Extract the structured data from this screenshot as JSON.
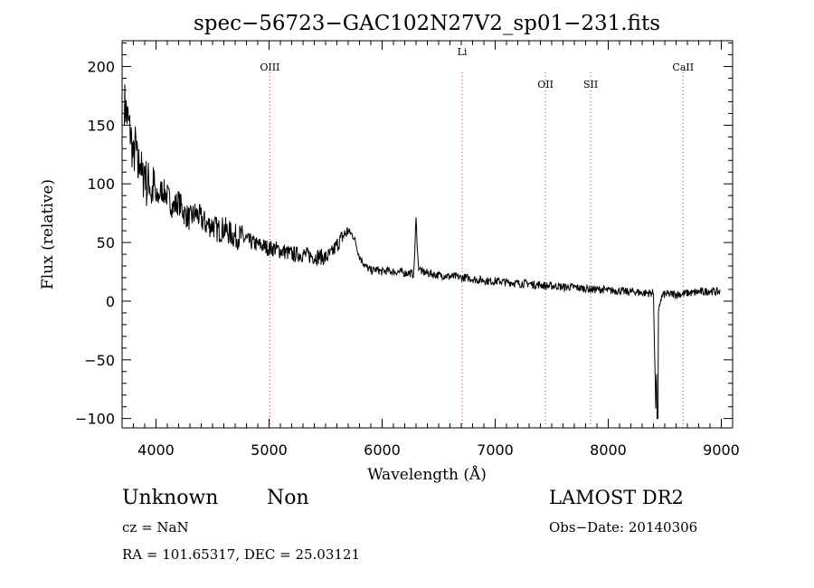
{
  "chart_data": {
    "type": "line",
    "title": "spec−56723−GAC102N27V2_sp01−231.fits",
    "xlabel": "Wavelength (Å)",
    "ylabel": "Flux (relative)",
    "xlim": [
      3700,
      9100
    ],
    "ylim": [
      -108,
      222
    ],
    "xticks": [
      4000,
      5000,
      6000,
      7000,
      8000,
      9000
    ],
    "yticks": [
      -100,
      -50,
      0,
      50,
      100,
      150,
      200
    ],
    "ytick_labels": [
      "−100",
      "−50",
      "0",
      "50",
      "100",
      "150",
      "200"
    ],
    "grid": false,
    "series": [
      {
        "x": [
          3720,
          3740,
          3760,
          3780,
          3800,
          3820,
          3840,
          3860,
          3880,
          3900,
          3920,
          3940,
          3960,
          3980,
          4000,
          4050,
          4100,
          4150,
          4200,
          4250,
          4300,
          4350,
          4400,
          4450,
          4500,
          4550,
          4600,
          4650,
          4700,
          4750,
          4800,
          4850,
          4900,
          4950,
          5000,
          5050,
          5100,
          5150,
          5200,
          5250,
          5300,
          5350,
          5400,
          5450,
          5500,
          5550,
          5600,
          5650,
          5700,
          5720,
          5750,
          5780,
          5800,
          5850,
          5900,
          5950,
          6000,
          6050,
          6100,
          6150,
          6200,
          6250,
          6280,
          6300,
          6320,
          6350,
          6400,
          6450,
          6500,
          6550,
          6600,
          6650,
          6700,
          6750,
          6800,
          6850,
          6900,
          6950,
          7000,
          7050,
          7100,
          7150,
          7200,
          7250,
          7300,
          7350,
          7400,
          7450,
          7500,
          7550,
          7600,
          7650,
          7700,
          7750,
          7800,
          7850,
          7900,
          7950,
          8000,
          8050,
          8100,
          8150,
          8200,
          8250,
          8300,
          8350,
          8400,
          8420,
          8440,
          8460,
          8480,
          8500,
          8550,
          8600,
          8650,
          8700,
          8750,
          8800,
          8850,
          8900,
          8950,
          8990
        ],
        "y": [
          170,
          160,
          150,
          140,
          120,
          135,
          110,
          125,
          100,
          115,
          95,
          105,
          90,
          100,
          85,
          95,
          90,
          80,
          85,
          75,
          70,
          75,
          70,
          65,
          65,
          60,
          62,
          58,
          55,
          55,
          52,
          50,
          48,
          47,
          45,
          45,
          43,
          42,
          40,
          40,
          40,
          39,
          38,
          38,
          37,
          40,
          48,
          55,
          60,
          58,
          55,
          45,
          38,
          30,
          26,
          27,
          25,
          26,
          25,
          25,
          24,
          24,
          23,
          70,
          30,
          25,
          24,
          23,
          22,
          22,
          21,
          21,
          20,
          20,
          19,
          18,
          18,
          17,
          17,
          17,
          16,
          16,
          15,
          15,
          15,
          14,
          14,
          13,
          13,
          13,
          12,
          12,
          12,
          11,
          11,
          10,
          10,
          10,
          9,
          9,
          9,
          8,
          8,
          8,
          7,
          7,
          7,
          -90,
          -15,
          0,
          5,
          6,
          6,
          6,
          6,
          7,
          7,
          8,
          8,
          9,
          8,
          8
        ]
      }
    ],
    "lines": [
      {
        "label": "OIII",
        "x": 5007
      },
      {
        "label": "Li",
        "x": 6708
      },
      {
        "label": "OII",
        "x": 7445
      },
      {
        "label": "SII",
        "x": 7845
      },
      {
        "label": "CaII",
        "x": 8662
      }
    ]
  },
  "info": {
    "class": "Unknown",
    "subclass": "Non",
    "survey": "LAMOST DR2",
    "cz": "cz = NaN",
    "obs_date": "Obs−Date: 20140306",
    "coords": "RA = 101.65317, DEC =  25.03121"
  }
}
